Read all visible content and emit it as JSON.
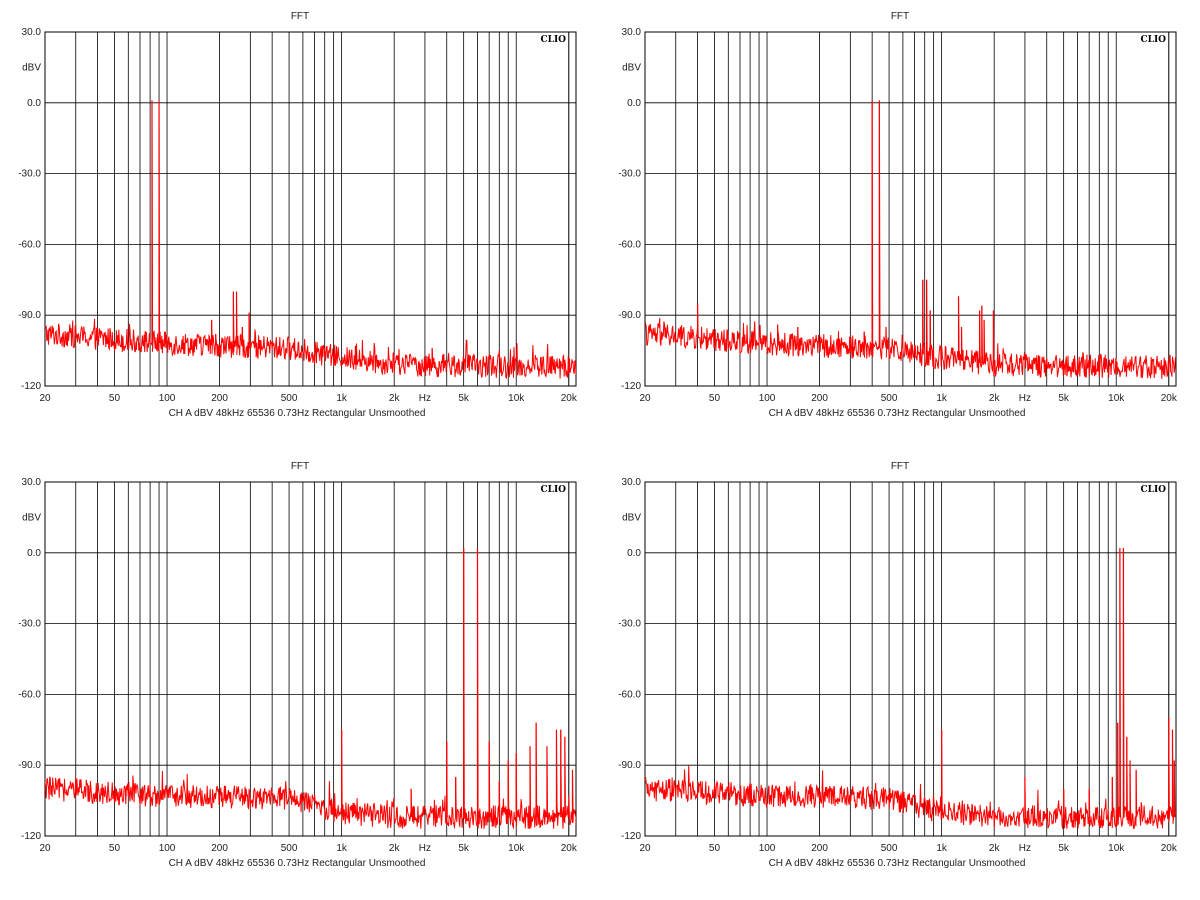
{
  "page": {
    "background": "#ffffff"
  },
  "colors": {
    "trace": "#ff0000",
    "grid": "#000000",
    "frame": "#000000"
  },
  "logo_text": "CLIO",
  "chart_data": [
    {
      "type": "line",
      "title": "FFT",
      "ylabel": "dBV",
      "xlabel": "Hz",
      "footer": "CH A   dBV   48kHz   65536   0.73Hz   Rectangular   Unsmoothed",
      "x_scale": "log",
      "xlim": [
        20,
        22000
      ],
      "ylim": [
        -120,
        30
      ],
      "yticks": [
        30,
        0,
        -30,
        -60,
        -90,
        -120
      ],
      "ytick_labels": [
        "30.0",
        "0.0",
        "-30.0",
        "-60.0",
        "-90.0",
        "-120"
      ],
      "xtick_labels": [
        {
          "x": 20,
          "label": "20"
        },
        {
          "x": 50,
          "label": "50"
        },
        {
          "x": 100,
          "label": "100"
        },
        {
          "x": 200,
          "label": "200"
        },
        {
          "x": 500,
          "label": "500"
        },
        {
          "x": 1000,
          "label": "1k"
        },
        {
          "x": 2000,
          "label": "2k"
        },
        {
          "x": 3000,
          "label": "Hz"
        },
        {
          "x": 5000,
          "label": "5k"
        },
        {
          "x": 10000,
          "label": "10k"
        },
        {
          "x": 20000,
          "label": "20k"
        }
      ],
      "grid": true,
      "noise_floor": [
        [
          20,
          -98
        ],
        [
          100,
          -102
        ],
        [
          500,
          -104
        ],
        [
          1000,
          -108
        ],
        [
          2000,
          -111
        ],
        [
          20000,
          -112
        ]
      ],
      "peaks": [
        [
          82,
          1
        ],
        [
          90,
          1
        ],
        [
          75,
          -97
        ],
        [
          97,
          -97
        ],
        [
          180,
          -92
        ],
        [
          190,
          -98
        ],
        [
          240,
          -80
        ],
        [
          250,
          -80
        ],
        [
          270,
          -95
        ],
        [
          295,
          -89
        ],
        [
          320,
          -97
        ],
        [
          800,
          -105
        ],
        [
          1200,
          -103
        ],
        [
          3300,
          -104
        ]
      ]
    },
    {
      "type": "line",
      "title": "FFT",
      "ylabel": "dBV",
      "xlabel": "Hz",
      "footer": "CH A   dBV   48kHz   65536   0.73Hz   Rectangular   Unsmoothed",
      "x_scale": "log",
      "xlim": [
        20,
        22000
      ],
      "ylim": [
        -120,
        30
      ],
      "yticks": [
        30,
        0,
        -30,
        -60,
        -90,
        -120
      ],
      "ytick_labels": [
        "30.0",
        "0.0",
        "-30.0",
        "-60.0",
        "-90.0",
        "-120"
      ],
      "xtick_labels": [
        {
          "x": 20,
          "label": "20"
        },
        {
          "x": 50,
          "label": "50"
        },
        {
          "x": 100,
          "label": "100"
        },
        {
          "x": 200,
          "label": "200"
        },
        {
          "x": 500,
          "label": "500"
        },
        {
          "x": 1000,
          "label": "1k"
        },
        {
          "x": 2000,
          "label": "2k"
        },
        {
          "x": 3000,
          "label": "Hz"
        },
        {
          "x": 5000,
          "label": "5k"
        },
        {
          "x": 10000,
          "label": "10k"
        },
        {
          "x": 20000,
          "label": "20k"
        }
      ],
      "grid": true,
      "noise_floor": [
        [
          20,
          -98
        ],
        [
          100,
          -102
        ],
        [
          500,
          -104
        ],
        [
          1000,
          -108
        ],
        [
          2000,
          -111
        ],
        [
          20000,
          -112
        ]
      ],
      "peaks": [
        [
          400,
          1
        ],
        [
          440,
          1
        ],
        [
          40,
          -85
        ],
        [
          360,
          -97
        ],
        [
          480,
          -95
        ],
        [
          780,
          -75
        ],
        [
          820,
          -75
        ],
        [
          860,
          -88
        ],
        [
          1250,
          -82
        ],
        [
          1300,
          -95
        ],
        [
          1650,
          -88
        ],
        [
          1700,
          -86
        ],
        [
          1750,
          -92
        ],
        [
          1980,
          -88
        ],
        [
          150,
          -95
        ],
        [
          115,
          -94
        ]
      ]
    },
    {
      "type": "line",
      "title": "FFT",
      "ylabel": "dBV",
      "xlabel": "Hz",
      "footer": "CH A   dBV   48kHz   65536   0.73Hz   Rectangular   Unsmoothed",
      "x_scale": "log",
      "xlim": [
        20,
        22000
      ],
      "ylim": [
        -120,
        30
      ],
      "yticks": [
        30,
        0,
        -30,
        -60,
        -90,
        -120
      ],
      "ytick_labels": [
        "30.0",
        "0.0",
        "-30.0",
        "-60.0",
        "-90.0",
        "-120"
      ],
      "xtick_labels": [
        {
          "x": 20,
          "label": "20"
        },
        {
          "x": 50,
          "label": "50"
        },
        {
          "x": 100,
          "label": "100"
        },
        {
          "x": 200,
          "label": "200"
        },
        {
          "x": 500,
          "label": "500"
        },
        {
          "x": 1000,
          "label": "1k"
        },
        {
          "x": 2000,
          "label": "2k"
        },
        {
          "x": 3000,
          "label": "Hz"
        },
        {
          "x": 5000,
          "label": "5k"
        },
        {
          "x": 10000,
          "label": "10k"
        },
        {
          "x": 20000,
          "label": "20k"
        }
      ],
      "grid": true,
      "noise_floor": [
        [
          20,
          -100
        ],
        [
          100,
          -103
        ],
        [
          500,
          -104
        ],
        [
          1000,
          -110
        ],
        [
          2000,
          -112
        ],
        [
          20000,
          -112
        ]
      ],
      "peaks": [
        [
          5000,
          2
        ],
        [
          6000,
          2
        ],
        [
          1000,
          -75
        ],
        [
          4000,
          -80
        ],
        [
          4500,
          -95
        ],
        [
          7000,
          -80
        ],
        [
          8000,
          -97
        ],
        [
          9000,
          -88
        ],
        [
          10000,
          -85
        ],
        [
          12000,
          -82
        ],
        [
          13000,
          -72
        ],
        [
          15000,
          -82
        ],
        [
          17000,
          -75
        ],
        [
          18000,
          -75
        ],
        [
          19000,
          -78
        ],
        [
          21000,
          -92
        ],
        [
          22000,
          -115
        ],
        [
          2500,
          -100
        ]
      ]
    },
    {
      "type": "line",
      "title": "FFT",
      "ylabel": "dBV",
      "xlabel": "Hz",
      "footer": "CH A   dBV   48kHz   65536   0.73Hz   Rectangular   Unsmoothed",
      "x_scale": "log",
      "xlim": [
        20,
        22000
      ],
      "ylim": [
        -120,
        30
      ],
      "yticks": [
        30,
        0,
        -30,
        -60,
        -90,
        -120
      ],
      "ytick_labels": [
        "30.0",
        "0.0",
        "-30.0",
        "-60.0",
        "-90.0",
        "-120"
      ],
      "xtick_labels": [
        {
          "x": 20,
          "label": "20"
        },
        {
          "x": 50,
          "label": "50"
        },
        {
          "x": 100,
          "label": "100"
        },
        {
          "x": 200,
          "label": "200"
        },
        {
          "x": 500,
          "label": "500"
        },
        {
          "x": 1000,
          "label": "1k"
        },
        {
          "x": 2000,
          "label": "2k"
        },
        {
          "x": 3000,
          "label": "Hz"
        },
        {
          "x": 5000,
          "label": "5k"
        },
        {
          "x": 10000,
          "label": "10k"
        },
        {
          "x": 20000,
          "label": "20k"
        }
      ],
      "grid": true,
      "noise_floor": [
        [
          20,
          -100
        ],
        [
          100,
          -103
        ],
        [
          500,
          -104
        ],
        [
          1000,
          -110
        ],
        [
          2000,
          -112
        ],
        [
          20000,
          -112
        ]
      ],
      "peaks": [
        [
          10500,
          2
        ],
        [
          11000,
          2
        ],
        [
          1000,
          -75
        ],
        [
          9500,
          -95
        ],
        [
          10200,
          -72
        ],
        [
          11500,
          -78
        ],
        [
          12000,
          -88
        ],
        [
          13000,
          -92
        ],
        [
          20000,
          -70
        ],
        [
          21000,
          -75
        ],
        [
          21500,
          -88
        ],
        [
          7000,
          -100
        ],
        [
          3000,
          -95
        ],
        [
          5000,
          -100
        ]
      ]
    }
  ]
}
